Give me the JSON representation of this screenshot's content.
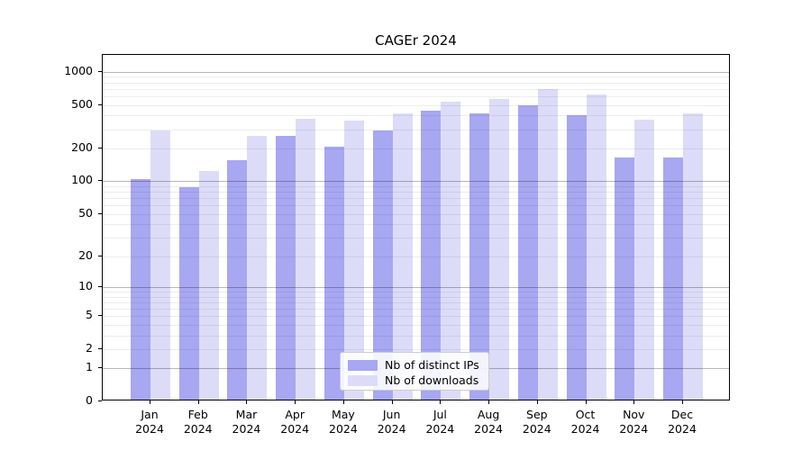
{
  "title": "CAGEr 2024",
  "chart_data": {
    "type": "bar",
    "title": "CAGEr 2024",
    "categories": [
      "Jan",
      "Feb",
      "Mar",
      "Apr",
      "May",
      "Jun",
      "Jul",
      "Aug",
      "Sep",
      "Oct",
      "Nov",
      "Dec"
    ],
    "category_year": "2024",
    "series": [
      {
        "name": "Nb of distinct IPs",
        "color": "#a7a7f2",
        "values": [
          100,
          85,
          150,
          250,
          200,
          280,
          430,
          400,
          480,
          390,
          160,
          160
        ]
      },
      {
        "name": "Nb of downloads",
        "color": "#dcdcf8",
        "values": [
          280,
          120,
          250,
          360,
          345,
          400,
          510,
          540,
          670,
          600,
          350,
          400
        ]
      }
    ],
    "xlabel": "",
    "ylabel": "",
    "yscale": "symlog (log1p)",
    "y_ticks": [
      0,
      1,
      2,
      5,
      10,
      20,
      50,
      100,
      200,
      500,
      1000
    ],
    "y_minor_gridlines": [
      2,
      3,
      4,
      5,
      6,
      7,
      8,
      9,
      20,
      30,
      40,
      50,
      60,
      70,
      80,
      90,
      200,
      300,
      400,
      500,
      600,
      700,
      800,
      900
    ],
    "y_major_gridlines": [
      1,
      10,
      100,
      1000
    ],
    "ylim": [
      0,
      1427
    ],
    "grid": "horizontal",
    "legend_position": "lower center",
    "axis_color": "#000000",
    "background_color": "#ffffff"
  }
}
